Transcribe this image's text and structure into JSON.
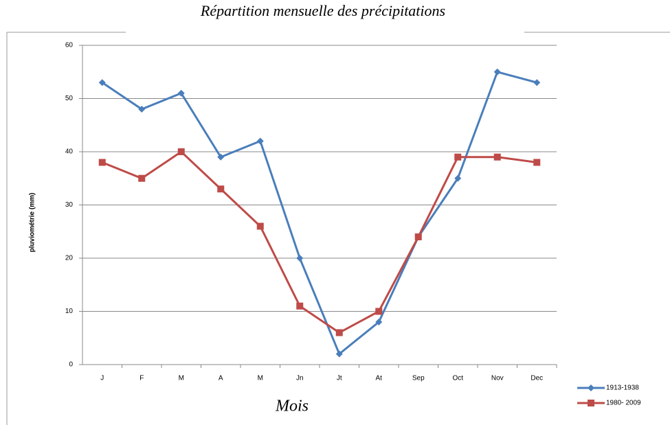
{
  "chart_data": {
    "type": "line",
    "title": "Répartition mensuelle des précipitations",
    "x_label": "Mois",
    "y_label": "pluviométrie (mm)",
    "categories": [
      "J",
      "F",
      "M",
      "A",
      "M",
      "Jn",
      "Jt",
      "At",
      "Sep",
      "Oct",
      "Nov",
      "Dec"
    ],
    "series": [
      {
        "name": "1913-1938",
        "color": "#4a7ebb",
        "marker": "diamond",
        "values": [
          53,
          48,
          51,
          39,
          42,
          20,
          2,
          8,
          24,
          35,
          55,
          53
        ]
      },
      {
        "name": "1980- 2009",
        "color": "#be4b48",
        "marker": "square",
        "values": [
          38,
          35,
          40,
          33,
          26,
          11,
          6,
          10,
          24,
          39,
          39,
          38
        ]
      }
    ],
    "ylim": [
      0,
      60
    ],
    "yticks": [
      0,
      10,
      20,
      30,
      40,
      50,
      60
    ],
    "grid": true,
    "legend": "bottom-right"
  }
}
